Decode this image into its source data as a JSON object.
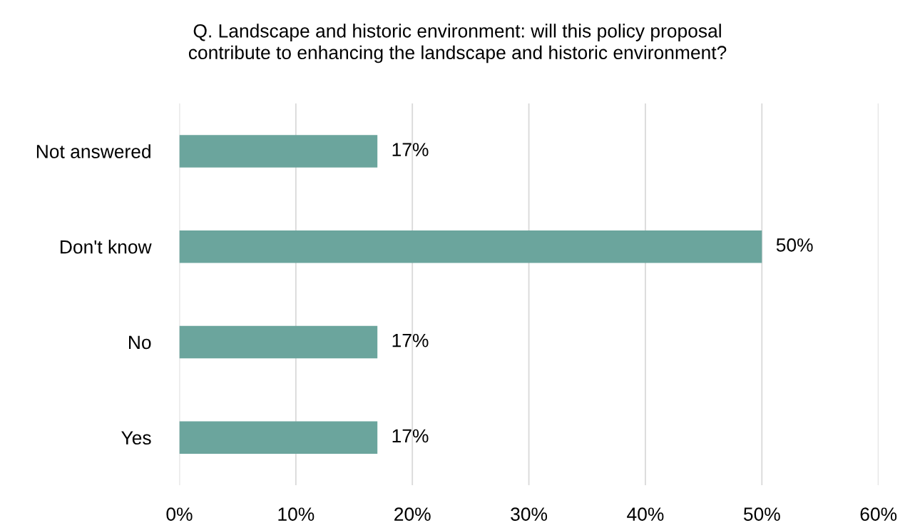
{
  "chart_data": {
    "type": "bar",
    "orientation": "horizontal",
    "title": "Q. Landscape and historic environment: will this policy proposal\ncontribute to enhancing the landscape and historic environment?",
    "categories": [
      "Not answered",
      "Don't know",
      "No",
      "Yes"
    ],
    "values": [
      17,
      50,
      17,
      17
    ],
    "value_labels": [
      "17%",
      "50%",
      "17%",
      "17%"
    ],
    "color": "#6ba59d",
    "xlim": [
      0,
      60
    ],
    "xticks": [
      {
        "value": 0,
        "label": "0%"
      },
      {
        "value": 10,
        "label": "10%"
      },
      {
        "value": 20,
        "label": "20%"
      },
      {
        "value": 30,
        "label": "30%"
      },
      {
        "value": 40,
        "label": "40%"
      },
      {
        "value": 50,
        "label": "50%"
      },
      {
        "value": 60,
        "label": "60%"
      }
    ],
    "grid": "x"
  }
}
